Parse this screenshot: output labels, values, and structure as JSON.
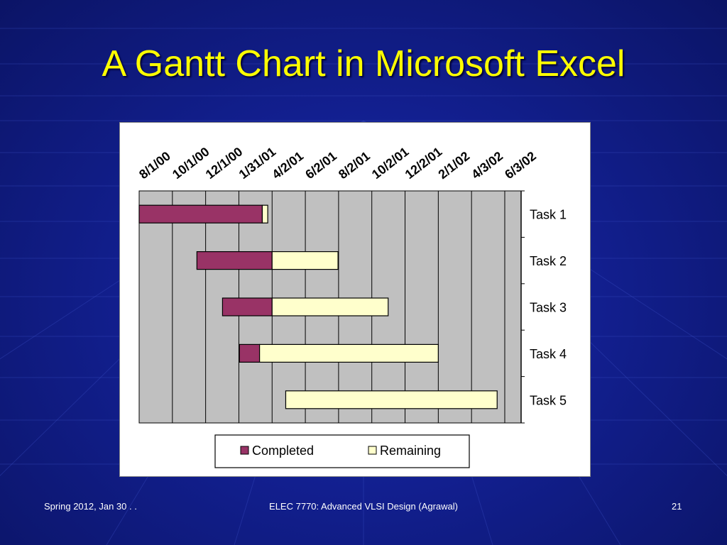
{
  "slide": {
    "title": "A Gantt Chart in Microsoft Excel",
    "footer_left": "Spring 2012, Jan 30 . .",
    "footer_center": "ELEC 7770: Advanced VLSI Design (Agrawal)",
    "page_number": "21"
  },
  "chart_data": {
    "type": "bar",
    "orientation": "horizontal-stacked",
    "x_tick_labels": [
      "8/1/00",
      "10/1/00",
      "12/1/00",
      "1/31/01",
      "4/2/01",
      "6/2/01",
      "8/2/01",
      "10/2/01",
      "12/2/01",
      "2/1/02",
      "4/3/02",
      "6/3/02"
    ],
    "categories": [
      "Task 1",
      "Task 2",
      "Task 3",
      "Task 4",
      "Task 5"
    ],
    "series": [
      {
        "name": "Completed",
        "color": "#993366",
        "start": [
          "2000-08-01",
          "2000-11-15",
          "2001-01-01",
          "2001-02-01",
          "2001-04-27"
        ],
        "end": [
          "2001-03-15",
          "2001-04-02",
          "2001-04-02",
          "2001-03-10",
          "2001-04-27"
        ]
      },
      {
        "name": "Remaining",
        "color": "#ffffcc",
        "start": [
          "2001-03-15",
          "2001-04-02",
          "2001-04-02",
          "2001-03-10",
          "2001-04-27"
        ],
        "end": [
          "2001-03-25",
          "2001-08-01",
          "2001-11-01",
          "2002-02-01",
          "2002-05-20"
        ]
      }
    ],
    "xlim": [
      "2000-08-01",
      "2002-07-03"
    ],
    "grid": true,
    "plot_background": "#c0c0c0",
    "legend": "bottom"
  }
}
